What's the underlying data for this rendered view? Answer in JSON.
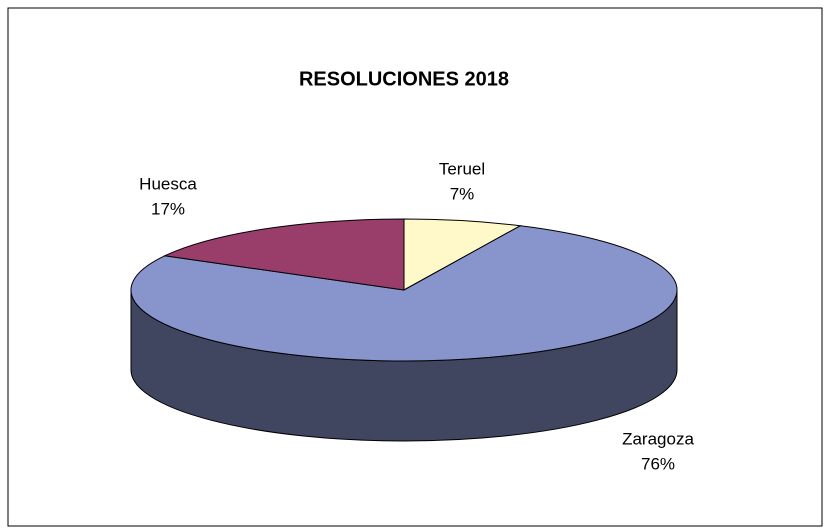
{
  "chart_data": {
    "type": "pie",
    "title": "RESOLUCIONES 2018",
    "categories": [
      "Teruel",
      "Zaragoza",
      "Huesca"
    ],
    "values": [
      7,
      76,
      17
    ],
    "value_labels": [
      "7%",
      "76%",
      "17%"
    ],
    "colors": [
      "#fff8c8",
      "#8894cc",
      "#993d6b"
    ]
  }
}
